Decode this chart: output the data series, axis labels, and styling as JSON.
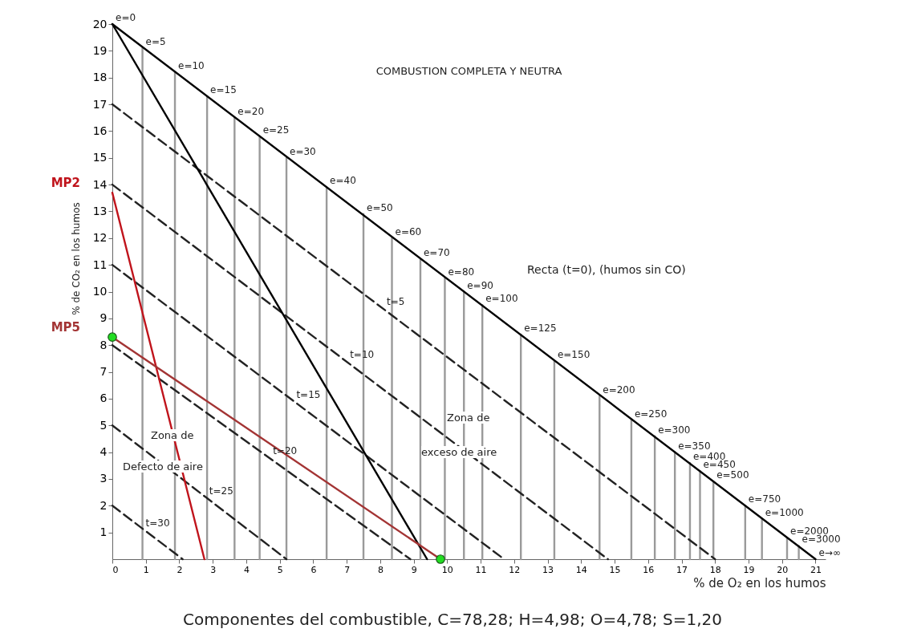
{
  "chart_data": {
    "type": "line",
    "title": "COMBUSTION COMPLETA Y NEUTRA",
    "xlabel": "% de O₂ en los humos",
    "ylabel": "% de CO₂ en los humos",
    "xlim": [
      0,
      21.3
    ],
    "ylim": [
      0,
      20
    ],
    "xticks": [
      0,
      1,
      2,
      3,
      4,
      5,
      6,
      7,
      8,
      9,
      10,
      11,
      12,
      13,
      14,
      15,
      16,
      17,
      18,
      19,
      20,
      21
    ],
    "yticks": [
      1,
      2,
      3,
      4,
      5,
      6,
      7,
      8,
      9,
      10,
      11,
      12,
      13,
      14,
      15,
      16,
      17,
      18,
      19,
      20
    ],
    "grid": false,
    "series": [
      {
        "x": [
          0.9,
          0.9
        ],
        "values": [
          0,
          19.1
        ],
        "color": "#9a9a9a"
      },
      {
        "x": [
          1.87,
          1.87
        ],
        "values": [
          0,
          18.2
        ],
        "color": "#9a9a9a"
      },
      {
        "x": [
          2.83,
          2.83
        ],
        "values": [
          0,
          17.3
        ],
        "color": "#9a9a9a"
      },
      {
        "x": [
          3.65,
          3.65
        ],
        "values": [
          0,
          16.5
        ],
        "color": "#9a9a9a"
      },
      {
        "x": [
          4.4,
          4.4
        ],
        "values": [
          0,
          15.8
        ],
        "color": "#9a9a9a"
      },
      {
        "x": [
          5.2,
          5.2
        ],
        "values": [
          0,
          15.0
        ],
        "color": "#9a9a9a"
      },
      {
        "x": [
          6.4,
          6.4
        ],
        "values": [
          0,
          13.9
        ],
        "color": "#9a9a9a"
      },
      {
        "x": [
          7.5,
          7.5
        ],
        "values": [
          0,
          12.9
        ],
        "color": "#9a9a9a"
      },
      {
        "x": [
          8.35,
          8.35
        ],
        "values": [
          0,
          12.0
        ],
        "color": "#9a9a9a"
      },
      {
        "x": [
          9.2,
          9.2
        ],
        "values": [
          0,
          11.2
        ],
        "color": "#9a9a9a"
      },
      {
        "x": [
          9.93,
          9.93
        ],
        "values": [
          0,
          10.5
        ],
        "color": "#9a9a9a"
      },
      {
        "x": [
          10.5,
          10.5
        ],
        "values": [
          0,
          10.0
        ],
        "color": "#9a9a9a"
      },
      {
        "x": [
          11.05,
          11.05
        ],
        "values": [
          0,
          9.5
        ],
        "color": "#9a9a9a"
      },
      {
        "x": [
          12.2,
          12.2
        ],
        "values": [
          0,
          8.4
        ],
        "color": "#9a9a9a"
      },
      {
        "x": [
          13.2,
          13.2
        ],
        "values": [
          0,
          7.4
        ],
        "color": "#9a9a9a"
      },
      {
        "x": [
          14.55,
          14.55
        ],
        "values": [
          0,
          6.1
        ],
        "color": "#9a9a9a"
      },
      {
        "x": [
          15.5,
          15.5
        ],
        "values": [
          0,
          5.2
        ],
        "color": "#9a9a9a"
      },
      {
        "x": [
          16.2,
          16.2
        ],
        "values": [
          0,
          4.6
        ],
        "color": "#9a9a9a"
      },
      {
        "x": [
          16.8,
          16.8
        ],
        "values": [
          0,
          4.0
        ],
        "color": "#9a9a9a"
      },
      {
        "x": [
          17.25,
          17.25
        ],
        "values": [
          0,
          3.6
        ],
        "color": "#9a9a9a"
      },
      {
        "x": [
          17.55,
          17.55
        ],
        "values": [
          0,
          3.3
        ],
        "color": "#9a9a9a"
      },
      {
        "x": [
          17.95,
          17.95
        ],
        "values": [
          0,
          2.9
        ],
        "color": "#9a9a9a"
      },
      {
        "x": [
          18.9,
          18.9
        ],
        "values": [
          0,
          2.0
        ],
        "color": "#9a9a9a"
      },
      {
        "x": [
          19.4,
          19.4
        ],
        "values": [
          0,
          1.5
        ],
        "color": "#9a9a9a"
      },
      {
        "x": [
          20.15,
          20.15
        ],
        "values": [
          0,
          0.8
        ],
        "color": "#9a9a9a"
      },
      {
        "x": [
          20.5,
          20.5
        ],
        "values": [
          0,
          0.5
        ],
        "color": "#9a9a9a"
      },
      {
        "x": [
          0,
          18.0
        ],
        "values": [
          17,
          0
        ],
        "color": "#222222",
        "line_style": "dashed"
      },
      {
        "x": [
          0,
          14.8
        ],
        "values": [
          14,
          0
        ],
        "color": "#222222",
        "line_style": "dashed"
      },
      {
        "x": [
          0,
          11.7
        ],
        "values": [
          11,
          0
        ],
        "color": "#222222",
        "line_style": "dashed"
      },
      {
        "x": [
          0,
          8.9
        ],
        "values": [
          8,
          0
        ],
        "color": "#222222",
        "line_style": "dashed"
      },
      {
        "x": [
          0,
          5.2
        ],
        "values": [
          5,
          0
        ],
        "color": "#222222",
        "line_style": "dashed"
      },
      {
        "x": [
          0,
          2.1
        ],
        "values": [
          2,
          0
        ],
        "color": "#222222",
        "line_style": "dashed"
      },
      {
        "x": [
          0,
          21
        ],
        "values": [
          20,
          0
        ],
        "color": "#000000"
      },
      {
        "x": [
          0,
          9.4
        ],
        "values": [
          20,
          0
        ],
        "color": "#000000"
      },
      {
        "name": "MP2",
        "x": [
          0,
          2.75
        ],
        "values": [
          13.7,
          0
        ],
        "color": "#c0141c"
      },
      {
        "name": "MP5",
        "x": [
          0,
          9.8
        ],
        "values": [
          8.3,
          0
        ],
        "color": "#a33434"
      },
      {
        "type": "scatter",
        "marker": "circle",
        "x": [
          0,
          9.8
        ],
        "values": [
          8.3,
          0
        ],
        "color": "#22dd22"
      }
    ],
    "annotations": [
      {
        "text": "e=0",
        "x": 0,
        "y": 20
      },
      {
        "text": "e=5",
        "x": 0.9,
        "y": 19.1
      },
      {
        "text": "e=10",
        "x": 1.87,
        "y": 18.2
      },
      {
        "text": "e=15",
        "x": 2.83,
        "y": 17.3
      },
      {
        "text": "e=20",
        "x": 3.65,
        "y": 16.5
      },
      {
        "text": "e=25",
        "x": 4.4,
        "y": 15.8
      },
      {
        "text": "e=30",
        "x": 5.2,
        "y": 15.0
      },
      {
        "text": "e=40",
        "x": 6.4,
        "y": 13.9
      },
      {
        "text": "e=50",
        "x": 7.5,
        "y": 12.9
      },
      {
        "text": "e=60",
        "x": 8.35,
        "y": 12.0
      },
      {
        "text": "e=70",
        "x": 9.2,
        "y": 11.2
      },
      {
        "text": "e=80",
        "x": 9.93,
        "y": 10.5
      },
      {
        "text": "e=90",
        "x": 10.5,
        "y": 10.0
      },
      {
        "text": "e=100",
        "x": 11.05,
        "y": 9.5
      },
      {
        "text": "e=125",
        "x": 12.2,
        "y": 8.4
      },
      {
        "text": "e=150",
        "x": 13.2,
        "y": 7.4
      },
      {
        "text": "e=200",
        "x": 14.55,
        "y": 6.1
      },
      {
        "text": "e=250",
        "x": 15.5,
        "y": 5.2
      },
      {
        "text": "e=300",
        "x": 16.2,
        "y": 4.6
      },
      {
        "text": "e=350",
        "x": 16.8,
        "y": 4.0
      },
      {
        "text": "e=400",
        "x": 17.25,
        "y": 3.6
      },
      {
        "text": "e=450",
        "x": 17.55,
        "y": 3.3
      },
      {
        "text": "e=500",
        "x": 17.95,
        "y": 2.9
      },
      {
        "text": "e=750",
        "x": 18.9,
        "y": 2.0
      },
      {
        "text": "e=1000",
        "x": 19.4,
        "y": 1.5
      },
      {
        "text": "e=2000",
        "x": 20.15,
        "y": 0.8
      },
      {
        "text": "e=3000",
        "x": 20.5,
        "y": 0.5
      },
      {
        "text": "e→∞",
        "x": 21,
        "y": 0
      },
      {
        "text": "t=5",
        "x": 8.1,
        "y": 9.4
      },
      {
        "text": "t=10",
        "x": 7.0,
        "y": 7.4
      },
      {
        "text": "t=15",
        "x": 5.4,
        "y": 5.9
      },
      {
        "text": "t=20",
        "x": 4.7,
        "y": 3.8
      },
      {
        "text": "t=25",
        "x": 2.8,
        "y": 2.3
      },
      {
        "text": "t=30",
        "x": 0.9,
        "y": 1.1
      },
      "Recta (t=0), (humos sin CO)",
      "Zona de",
      "Defecto de aire",
      "Zona de",
      "exceso de aire",
      "Componentes del combustible, C=78,28; H=4,98; O=4,78; S=1,20"
    ]
  }
}
